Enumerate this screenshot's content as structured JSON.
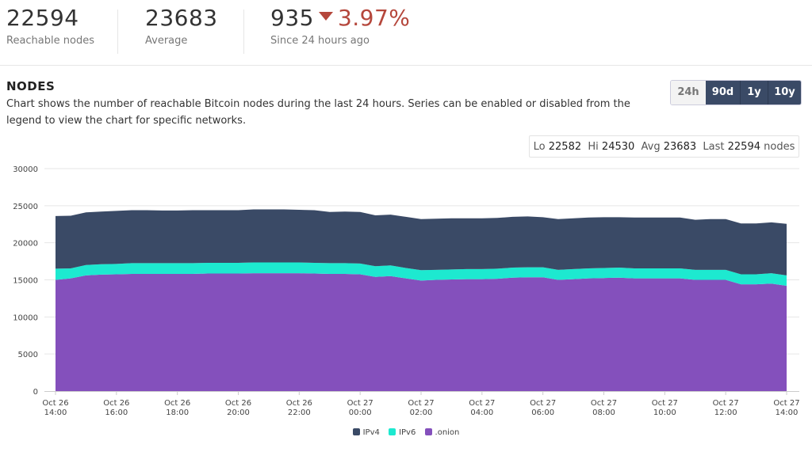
{
  "stats": {
    "reachable": {
      "value": "22594",
      "label": "Reachable nodes"
    },
    "average": {
      "value": "23683",
      "label": "Average"
    },
    "change": {
      "value": "935",
      "percent": "3.97%",
      "label": "Since 24 hours ago",
      "direction": "down"
    }
  },
  "section": {
    "title": "NODES",
    "description": "Chart shows the number of reachable Bitcoin nodes during the last 24 hours. Series can be enabled or disabled from the legend to view the chart for specific networks."
  },
  "ranges": [
    "24h",
    "90d",
    "1y",
    "10y"
  ],
  "summary": {
    "lo_label": "Lo",
    "lo": "22582",
    "hi_label": "Hi",
    "hi": "24530",
    "avg_label": "Avg",
    "avg": "23683",
    "last_label": "Last",
    "last": "22594",
    "unit": "nodes"
  },
  "chart_data": {
    "type": "area",
    "stacked": true,
    "title": "NODES",
    "ylim": [
      0,
      30000
    ],
    "yticks": [
      0,
      5000,
      10000,
      15000,
      20000,
      25000,
      30000
    ],
    "xlim": [
      0,
      24
    ],
    "xticks": [
      {
        "x": 0,
        "l1": "Oct 26",
        "l2": "14:00"
      },
      {
        "x": 2,
        "l1": "Oct 26",
        "l2": "16:00"
      },
      {
        "x": 4,
        "l1": "Oct 26",
        "l2": "18:00"
      },
      {
        "x": 6,
        "l1": "Oct 26",
        "l2": "20:00"
      },
      {
        "x": 8,
        "l1": "Oct 26",
        "l2": "22:00"
      },
      {
        "x": 10,
        "l1": "Oct 27",
        "l2": "00:00"
      },
      {
        "x": 12,
        "l1": "Oct 27",
        "l2": "02:00"
      },
      {
        "x": 14,
        "l1": "Oct 27",
        "l2": "04:00"
      },
      {
        "x": 16,
        "l1": "Oct 27",
        "l2": "06:00"
      },
      {
        "x": 18,
        "l1": "Oct 27",
        "l2": "08:00"
      },
      {
        "x": 20,
        "l1": "Oct 27",
        "l2": "10:00"
      },
      {
        "x": 22,
        "l1": "Oct 27",
        "l2": "12:00"
      },
      {
        "x": 24,
        "l1": "Oct 27",
        "l2": "14:00"
      }
    ],
    "x": [
      0,
      0.5,
      1,
      1.5,
      2,
      2.5,
      3,
      3.5,
      4,
      4.5,
      5,
      5.5,
      6,
      6.5,
      7,
      7.5,
      8,
      8.5,
      9,
      9.5,
      10,
      10.5,
      11,
      11.5,
      12,
      12.5,
      13,
      13.5,
      14,
      14.5,
      15,
      15.5,
      16,
      16.5,
      17,
      17.5,
      18,
      18.5,
      19,
      19.5,
      20,
      20.5,
      21,
      21.5,
      22,
      22.5,
      23,
      23.5,
      24
    ],
    "series": [
      {
        "name": ".onion",
        "color": "#8450bc",
        "values": [
          15000,
          15200,
          15600,
          15700,
          15750,
          15800,
          15800,
          15800,
          15800,
          15800,
          15850,
          15850,
          15850,
          15900,
          15900,
          15900,
          15900,
          15850,
          15800,
          15800,
          15750,
          15400,
          15500,
          15200,
          14900,
          15000,
          15050,
          15100,
          15100,
          15150,
          15300,
          15350,
          15350,
          15000,
          15100,
          15200,
          15250,
          15300,
          15200,
          15200,
          15200,
          15200,
          15000,
          15000,
          15000,
          14400,
          14400,
          14500,
          14200
        ]
      },
      {
        "name": "IPv6",
        "color": "#1de9d0",
        "values": [
          1500,
          1350,
          1400,
          1400,
          1400,
          1450,
          1450,
          1450,
          1450,
          1450,
          1450,
          1450,
          1450,
          1450,
          1450,
          1450,
          1450,
          1450,
          1450,
          1450,
          1450,
          1450,
          1450,
          1400,
          1400,
          1350,
          1350,
          1350,
          1350,
          1350,
          1350,
          1350,
          1350,
          1350,
          1350,
          1350,
          1350,
          1350,
          1350,
          1350,
          1350,
          1350,
          1350,
          1350,
          1350,
          1350,
          1350,
          1400,
          1400
        ]
      },
      {
        "name": "IPv4",
        "color": "#3a4a66",
        "values": [
          7100,
          7100,
          7100,
          7100,
          7150,
          7150,
          7150,
          7100,
          7100,
          7150,
          7100,
          7100,
          7100,
          7150,
          7150,
          7150,
          7100,
          7100,
          6900,
          6950,
          6950,
          6850,
          6850,
          6900,
          6900,
          6900,
          6900,
          6850,
          6850,
          6850,
          6850,
          6850,
          6750,
          6850,
          6850,
          6850,
          6850,
          6800,
          6850,
          6850,
          6850,
          6850,
          6750,
          6850,
          6850,
          6850,
          6850,
          6850,
          6950
        ]
      }
    ],
    "legend": [
      "IPv4",
      "IPv6",
      ".onion"
    ],
    "legend_position": "bottom-center"
  }
}
